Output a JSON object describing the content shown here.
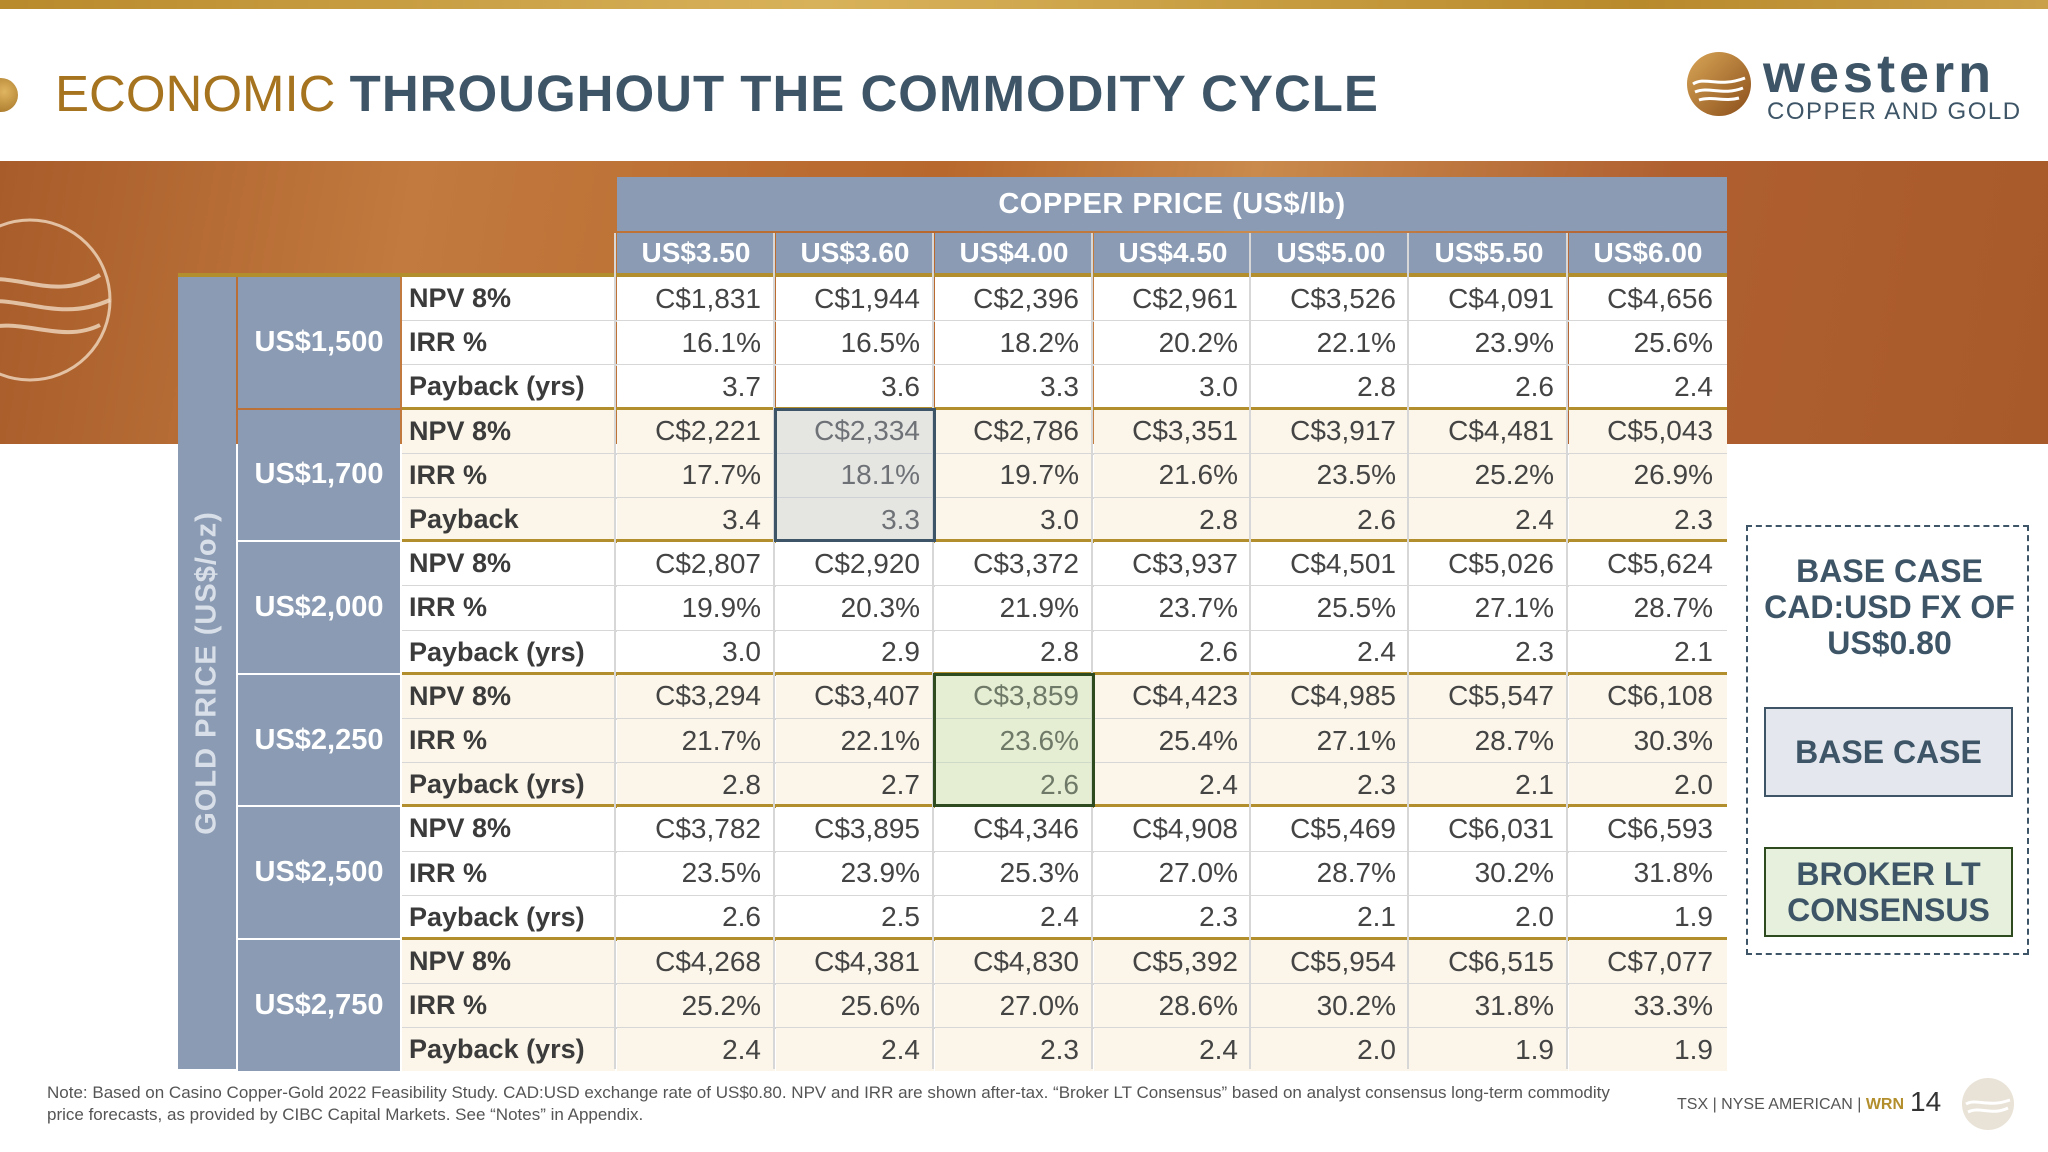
{
  "title": {
    "light": "ECONOMIC",
    "bold": "THROUGHOUT THE COMMODITY CYCLE"
  },
  "logo": {
    "word": "western",
    "sub": "COPPER AND GOLD"
  },
  "table": {
    "copper_header": "COPPER PRICE (US$/lb)",
    "gold_header": "GOLD PRICE (US$/oz)",
    "copper_prices": [
      "US$3.50",
      "US$3.60",
      "US$4.00",
      "US$4.50",
      "US$5.00",
      "US$5.50",
      "US$6.00"
    ],
    "groups": [
      {
        "gold": "US$1,500",
        "rows": [
          {
            "metric": "NPV 8%",
            "values": [
              "C$1,831",
              "C$1,944",
              "C$2,396",
              "C$2,961",
              "C$3,526",
              "C$4,091",
              "C$4,656"
            ]
          },
          {
            "metric": "IRR %",
            "values": [
              "16.1%",
              "16.5%",
              "18.2%",
              "20.2%",
              "22.1%",
              "23.9%",
              "25.6%"
            ]
          },
          {
            "metric": "Payback (yrs)",
            "values": [
              "3.7",
              "3.6",
              "3.3",
              "3.0",
              "2.8",
              "2.6",
              "2.4"
            ]
          }
        ]
      },
      {
        "gold": "US$1,700",
        "rows": [
          {
            "metric": "NPV 8%",
            "values": [
              "C$2,221",
              "C$2,334",
              "C$2,786",
              "C$3,351",
              "C$3,917",
              "C$4,481",
              "C$5,043"
            ]
          },
          {
            "metric": "IRR %",
            "values": [
              "17.7%",
              "18.1%",
              "19.7%",
              "21.6%",
              "23.5%",
              "25.2%",
              "26.9%"
            ]
          },
          {
            "metric": "Payback",
            "values": [
              "3.4",
              "3.3",
              "3.0",
              "2.8",
              "2.6",
              "2.4",
              "2.3"
            ]
          }
        ]
      },
      {
        "gold": "US$2,000",
        "rows": [
          {
            "metric": "NPV 8%",
            "values": [
              "C$2,807",
              "C$2,920",
              "C$3,372",
              "C$3,937",
              "C$4,501",
              "C$5,026",
              "C$5,624"
            ]
          },
          {
            "metric": "IRR %",
            "values": [
              "19.9%",
              "20.3%",
              "21.9%",
              "23.7%",
              "25.5%",
              "27.1%",
              "28.7%"
            ]
          },
          {
            "metric": "Payback (yrs)",
            "values": [
              "3.0",
              "2.9",
              "2.8",
              "2.6",
              "2.4",
              "2.3",
              "2.1"
            ]
          }
        ]
      },
      {
        "gold": "US$2,250",
        "rows": [
          {
            "metric": "NPV 8%",
            "values": [
              "C$3,294",
              "C$3,407",
              "C$3,859",
              "C$4,423",
              "C$4,985",
              "C$5,547",
              "C$6,108"
            ]
          },
          {
            "metric": "IRR %",
            "values": [
              "21.7%",
              "22.1%",
              "23.6%",
              "25.4%",
              "27.1%",
              "28.7%",
              "30.3%"
            ]
          },
          {
            "metric": "Payback (yrs)",
            "values": [
              "2.8",
              "2.7",
              "2.6",
              "2.4",
              "2.3",
              "2.1",
              "2.0"
            ]
          }
        ]
      },
      {
        "gold": "US$2,500",
        "rows": [
          {
            "metric": "NPV 8%",
            "values": [
              "C$3,782",
              "C$3,895",
              "C$4,346",
              "C$4,908",
              "C$5,469",
              "C$6,031",
              "C$6,593"
            ]
          },
          {
            "metric": "IRR %",
            "values": [
              "23.5%",
              "23.9%",
              "25.3%",
              "27.0%",
              "28.7%",
              "30.2%",
              "31.8%"
            ]
          },
          {
            "metric": "Payback (yrs)",
            "values": [
              "2.6",
              "2.5",
              "2.4",
              "2.3",
              "2.1",
              "2.0",
              "1.9"
            ]
          }
        ]
      },
      {
        "gold": "US$2,750",
        "rows": [
          {
            "metric": "NPV 8%",
            "values": [
              "C$4,268",
              "C$4,381",
              "C$4,830",
              "C$5,392",
              "C$5,954",
              "C$6,515",
              "C$7,077"
            ]
          },
          {
            "metric": "IRR %",
            "values": [
              "25.2%",
              "25.6%",
              "27.0%",
              "28.6%",
              "30.2%",
              "31.8%",
              "33.3%"
            ]
          },
          {
            "metric": "Payback (yrs)",
            "values": [
              "2.4",
              "2.4",
              "2.3",
              "2.4",
              "2.0",
              "1.9",
              "1.9"
            ]
          }
        ]
      }
    ],
    "base_case": {
      "gold_group": 1,
      "copper_index": 1
    },
    "broker_consensus": {
      "gold_group": 3,
      "copper_index": 2
    }
  },
  "legend": {
    "title": "BASE CASE CAD:USD FX OF US$0.80",
    "base_label": "BASE CASE",
    "broker_label": "BROKER LT CONSENSUS"
  },
  "note": "Note: Based on Casino Copper-Gold 2022 Feasibility Study. CAD:USD exchange rate of US$0.80. NPV and IRR are shown after-tax. “Broker LT Consensus” based on analyst consensus long-term commodity price forecasts, as provided by CIBC Capital Markets. See “Notes” in Appendix.",
  "footer": {
    "exchanges": "TSX | NYSE AMERICAN |",
    "ticker": "WRN",
    "page": "14"
  },
  "colors": {
    "gold": "#b38e2c",
    "slate": "#3d5566",
    "header": "#8a9bb3"
  }
}
